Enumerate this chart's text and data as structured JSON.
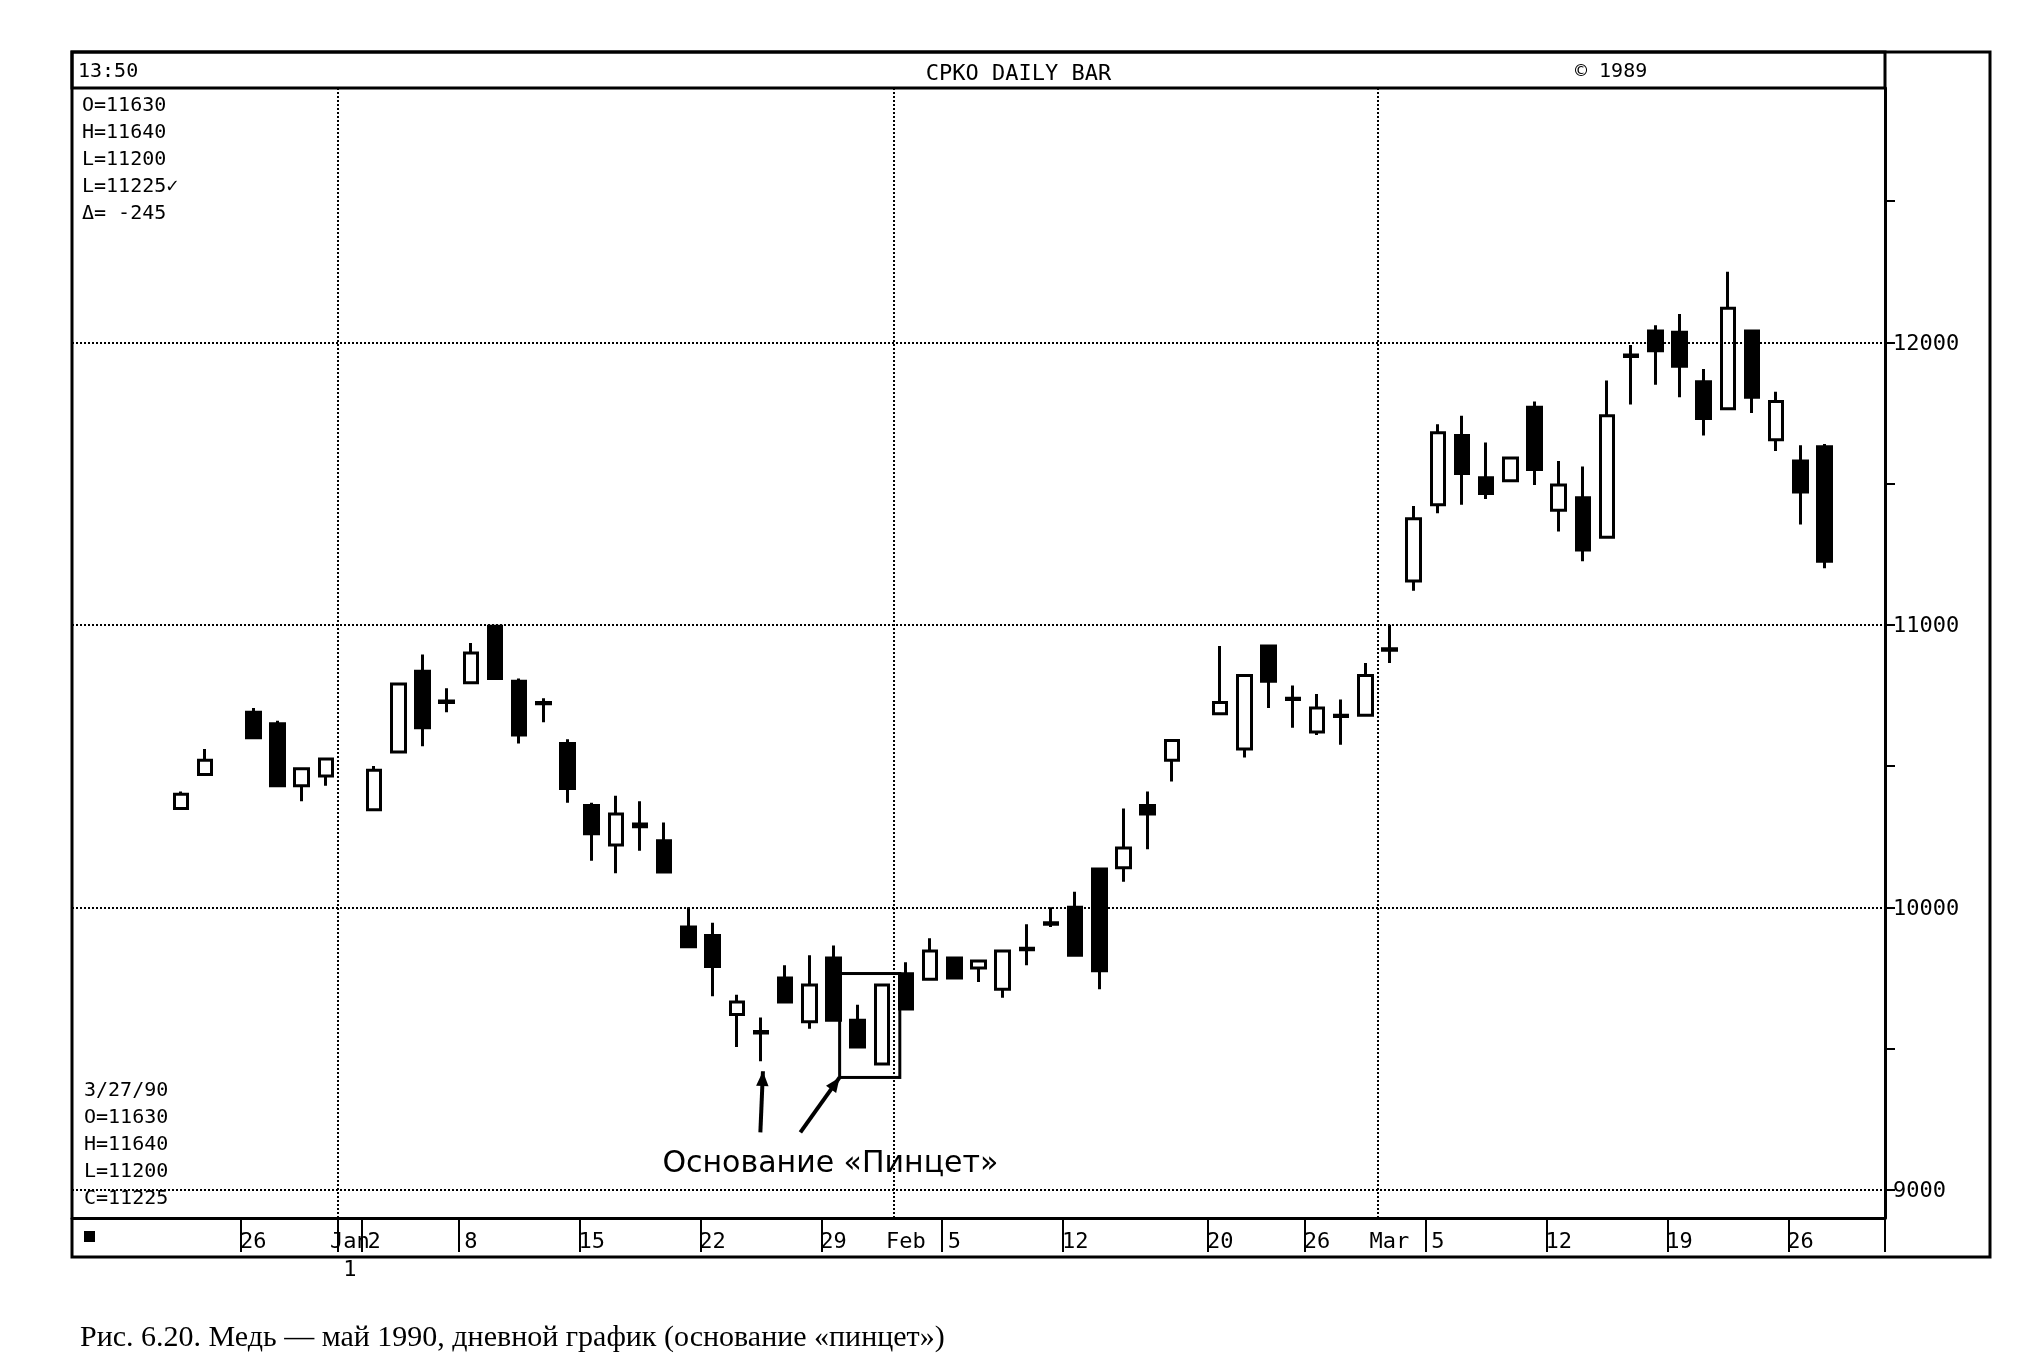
{
  "chart_data": {
    "type": "candlestick",
    "title": "CPKO DAILY BAR",
    "annotations": [
      "13:50",
      "© 1989",
      "O=11630\nH=11640\nL=11200\nL=11225✓\nΔ= -245",
      "3/27/90\nO=11630\nH=11640\nL=11200\nC=11225",
      "Основание «Пинцет»",
      "Рис. 6.20. Медь — май 1990, дневной график (основание «пинцет»)"
    ],
    "categories": [
      null,
      null,
      null,
      null,
      null,
      null,
      null,
      "26",
      null,
      null,
      null,
      "Jan\n1",
      "2",
      null,
      null,
      null,
      "8",
      null,
      null,
      null,
      null,
      "15",
      null,
      null,
      null,
      null,
      "22",
      null,
      null,
      null,
      null,
      "29",
      null,
      null,
      "Feb\n",
      null,
      "5",
      null,
      null,
      null,
      null,
      "12",
      null,
      null,
      null,
      null,
      null,
      "20",
      null,
      null,
      null,
      "26",
      null,
      null,
      "Mar\n",
      null,
      "5",
      null,
      null,
      null,
      null,
      "12",
      null,
      null,
      null,
      null,
      "19",
      null,
      null,
      null,
      null,
      "26",
      null,
      null,
      null
    ],
    "ohlc": [
      null,
      null,
      null,
      null,
      [
        10350,
        10410,
        10345,
        10400
      ],
      [
        10470,
        10560,
        10465,
        10520
      ],
      null,
      [
        10690,
        10705,
        10595,
        10600
      ],
      [
        10650,
        10660,
        10425,
        10430
      ],
      [
        10430,
        10495,
        10375,
        10490
      ],
      [
        10465,
        10530,
        10430,
        10525
      ],
      null,
      [
        10345,
        10500,
        10340,
        10485
      ],
      [
        10550,
        10795,
        10545,
        10790
      ],
      [
        10835,
        10895,
        10570,
        10635
      ],
      [
        10730,
        10775,
        10690,
        10725
      ],
      [
        10795,
        10935,
        10790,
        10900
      ],
      [
        10995,
        11000,
        10805,
        10810
      ],
      [
        10800,
        10810,
        10580,
        10610
      ],
      [
        10725,
        10740,
        10655,
        10720
      ],
      [
        10580,
        10595,
        10370,
        10420
      ],
      [
        10360,
        10370,
        10165,
        10260
      ],
      [
        10220,
        10395,
        10120,
        10330
      ],
      [
        10295,
        10375,
        10200,
        10285
      ],
      [
        10235,
        10300,
        10120,
        10125
      ],
      [
        9930,
        10000,
        9855,
        9860
      ],
      [
        9900,
        9945,
        9685,
        9790
      ],
      [
        9620,
        9690,
        9505,
        9665
      ],
      [
        9560,
        9610,
        9455,
        9555
      ],
      [
        9750,
        9795,
        9660,
        9665
      ],
      [
        9595,
        9830,
        9570,
        9725
      ],
      [
        9820,
        9865,
        9600,
        9600
      ],
      [
        9600,
        9655,
        9505,
        9505
      ],
      [
        9445,
        9730,
        9440,
        9725
      ],
      [
        9765,
        9805,
        9635,
        9640
      ],
      [
        9745,
        9890,
        9740,
        9845
      ],
      [
        9820,
        9825,
        9745,
        9750
      ],
      [
        9785,
        9815,
        9735,
        9810
      ],
      [
        9710,
        9850,
        9680,
        9845
      ],
      [
        9855,
        9940,
        9795,
        9850
      ],
      [
        9940,
        10000,
        9930,
        9945
      ],
      [
        10000,
        10055,
        9825,
        9830
      ],
      [
        10135,
        10140,
        9710,
        9775
      ],
      [
        10140,
        10350,
        10090,
        10210
      ],
      [
        10360,
        10410,
        10205,
        10330
      ],
      [
        10520,
        10595,
        10445,
        10590
      ],
      null,
      [
        10685,
        10925,
        10680,
        10725
      ],
      [
        10560,
        10825,
        10530,
        10820
      ],
      [
        10925,
        10930,
        10705,
        10800
      ],
      [
        10740,
        10785,
        10635,
        10735
      ],
      [
        10620,
        10755,
        10610,
        10705
      ],
      [
        10680,
        10735,
        10575,
        10675
      ],
      [
        10680,
        10865,
        10675,
        10820
      ],
      [
        10915,
        11000,
        10865,
        10910
      ],
      [
        11155,
        11420,
        11120,
        11375
      ],
      [
        11425,
        11710,
        11395,
        11680
      ],
      [
        11670,
        11740,
        11425,
        11535
      ],
      [
        11520,
        11645,
        11445,
        11465
      ],
      [
        11510,
        11595,
        11505,
        11590
      ],
      [
        11770,
        11790,
        11495,
        11550
      ],
      [
        11405,
        11580,
        11330,
        11495
      ],
      [
        11450,
        11560,
        11225,
        11265
      ],
      [
        11310,
        11865,
        11310,
        11740
      ],
      [
        11955,
        11990,
        11780,
        11950
      ],
      [
        12040,
        12060,
        11850,
        11970
      ],
      [
        12035,
        12100,
        11805,
        11915
      ],
      [
        11860,
        11905,
        11670,
        11730
      ],
      [
        11765,
        12250,
        11765,
        12120
      ],
      [
        12040,
        12045,
        11750,
        11805
      ],
      [
        11655,
        11825,
        11615,
        11790
      ],
      [
        11580,
        11635,
        11355,
        11470
      ],
      [
        11630,
        11640,
        11200,
        11225
      ],
      null,
      null
    ],
    "color": "#000000",
    "ylim": [
      8900,
      12900
    ],
    "yticks": [
      9000,
      {
        "value": 9500,
        "label": null
      },
      10000,
      {
        "value": 10500,
        "label": null
      },
      11000,
      {
        "value": 11500,
        "label": null
      },
      12000,
      {
        "value": 12500,
        "label": null
      }
    ],
    "grid": true
  }
}
